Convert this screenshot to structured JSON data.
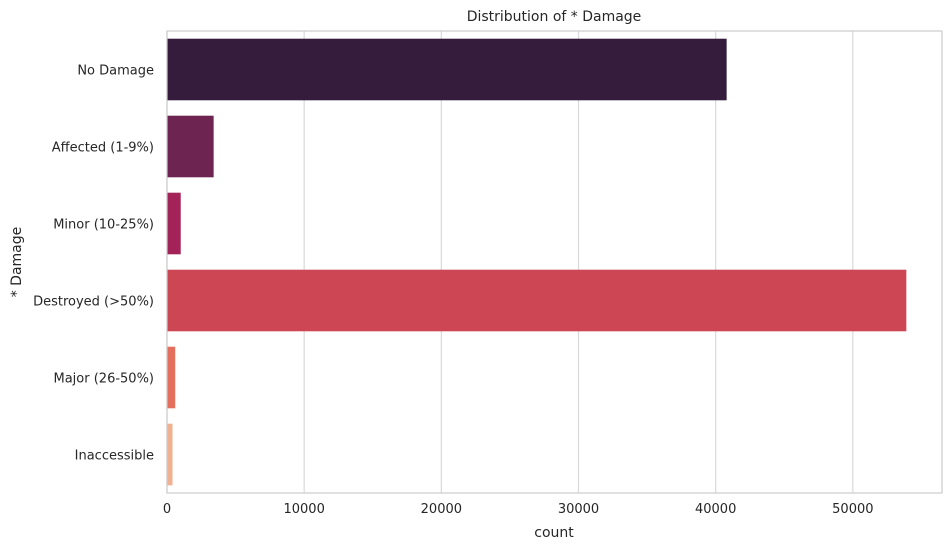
{
  "chart_data": {
    "type": "bar",
    "orientation": "horizontal",
    "title": "Distribution of * Damage",
    "xlabel": "count",
    "ylabel": "* Damage",
    "categories": [
      "No Damage",
      "Affected (1-9%)",
      "Minor (10-25%)",
      "Destroyed (>50%)",
      "Major (26-50%)",
      "Inaccessible"
    ],
    "values": [
      40800,
      3400,
      1000,
      53900,
      600,
      400
    ],
    "colors": [
      "#351c3c",
      "#6e2451",
      "#a32358",
      "#cd4654",
      "#e46f5d",
      "#efb190"
    ],
    "xlim": [
      0,
      56500
    ],
    "xticks": [
      0,
      10000,
      20000,
      30000,
      40000,
      50000
    ],
    "grid": true
  }
}
